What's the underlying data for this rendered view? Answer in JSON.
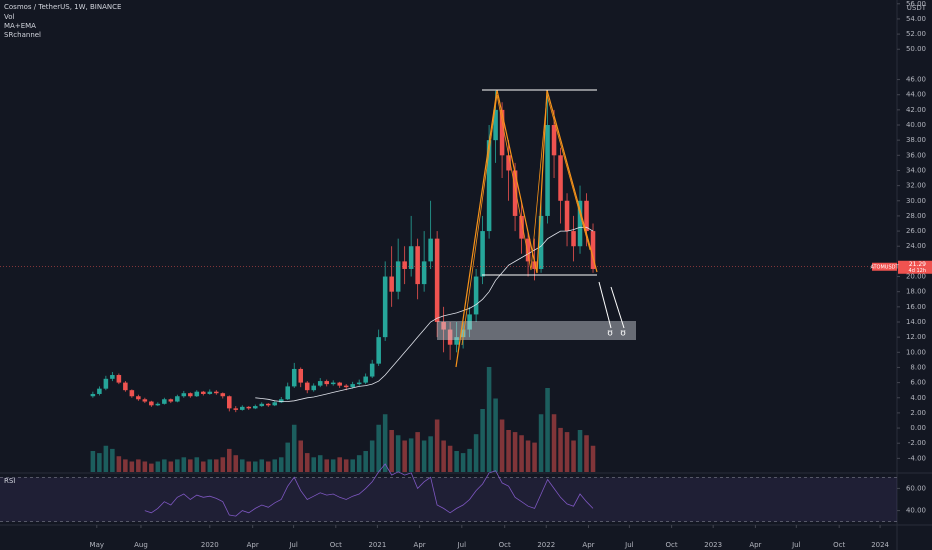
{
  "chart_data": {
    "type": "candlestick",
    "title": "Cosmos / TetherUS, 1W, BINANCE",
    "indicators": [
      "Vol",
      "MA+EMA",
      "SRchannel"
    ],
    "currency": "USDT",
    "symbol_label": "ATOMUSDT",
    "last_price": 21.29,
    "countdown": "4d 12h",
    "up_color": "#26a69a",
    "down_color": "#ef5350",
    "ma_color": "#e0e3eb",
    "grid": false,
    "xlim": [
      -14.3,
      123.8
    ],
    "ylim": [
      -5.8,
      56.5
    ],
    "yticks": [
      {
        "value": -4,
        "label": "-4.00"
      },
      {
        "value": -2,
        "label": "-2.00"
      },
      {
        "value": 0,
        "label": "0.00"
      },
      {
        "value": 2,
        "label": "2.00"
      },
      {
        "value": 4,
        "label": "4.00"
      },
      {
        "value": 6,
        "label": "6.00"
      },
      {
        "value": 8,
        "label": "8.00"
      },
      {
        "value": 10,
        "label": "10.00"
      },
      {
        "value": 12,
        "label": "12.00"
      },
      {
        "value": 14,
        "label": "14.00"
      },
      {
        "value": 16,
        "label": "16.00"
      },
      {
        "value": 18,
        "label": "18.00"
      },
      {
        "value": 20,
        "label": "20.00"
      },
      {
        "value": 24,
        "label": "24.00"
      },
      {
        "value": 26,
        "label": "26.00"
      },
      {
        "value": 28,
        "label": "28.00"
      },
      {
        "value": 30,
        "label": "30.00"
      },
      {
        "value": 32,
        "label": "32.00"
      },
      {
        "value": 34,
        "label": "34.00"
      },
      {
        "value": 36,
        "label": "36.00"
      },
      {
        "value": 38,
        "label": "38.00"
      },
      {
        "value": 40,
        "label": "40.00"
      },
      {
        "value": 42,
        "label": "42.00"
      },
      {
        "value": 44,
        "label": "44.00"
      },
      {
        "value": 46,
        "label": "46.00"
      },
      {
        "value": 50,
        "label": "50.00"
      },
      {
        "value": 52,
        "label": "52.00"
      },
      {
        "value": 54,
        "label": "54.00"
      },
      {
        "value": 56,
        "label": "56.00"
      }
    ],
    "xticks": [
      {
        "value": 0.6,
        "label": "May"
      },
      {
        "value": 7.4,
        "label": "Aug"
      },
      {
        "value": 18,
        "label": "2020"
      },
      {
        "value": 24.6,
        "label": "Apr"
      },
      {
        "value": 30.9,
        "label": "Jul"
      },
      {
        "value": 37.4,
        "label": "Oct"
      },
      {
        "value": 43.8,
        "label": "2021"
      },
      {
        "value": 50.3,
        "label": "Apr"
      },
      {
        "value": 56.8,
        "label": "Jul"
      },
      {
        "value": 63.4,
        "label": "Oct"
      },
      {
        "value": 69.8,
        "label": "2022"
      },
      {
        "value": 76.3,
        "label": "Apr"
      },
      {
        "value": 82.6,
        "label": "Jul"
      },
      {
        "value": 89.1,
        "label": "Oct"
      },
      {
        "value": 95.5,
        "label": "2023"
      },
      {
        "value": 102,
        "label": "Apr"
      },
      {
        "value": 108.3,
        "label": "Jul"
      },
      {
        "value": 114.9,
        "label": "Oct"
      },
      {
        "value": 121.2,
        "label": "2024"
      }
    ],
    "open": [
      4.2,
      4.5,
      5.2,
      6.5,
      7,
      6,
      5,
      4.2,
      3.8,
      3.5,
      3.0,
      3.2,
      3.8,
      3.5,
      4.2,
      4.6,
      4.2,
      4.8,
      4.5,
      4.8,
      4.6,
      4.2,
      2.6,
      2.4,
      2.8,
      2.6,
      2.9,
      3.2,
      3.0,
      3.4,
      3.8,
      5.5,
      7.8,
      6.0,
      5.0,
      5.6,
      6.2,
      5.8,
      6.0,
      5.6,
      5.4,
      5.8,
      6.0,
      6.8,
      8.5,
      12,
      20,
      18,
      22,
      21,
      24,
      19,
      22,
      25,
      14,
      13,
      11,
      12,
      13,
      15,
      20,
      26,
      38,
      42,
      36,
      34,
      28,
      25,
      22,
      21,
      28,
      40,
      36,
      30,
      26,
      24,
      30,
      26
    ],
    "high": [
      4.8,
      5.5,
      6.9,
      7.4,
      7.2,
      6.2,
      5.1,
      4.4,
      4.0,
      3.6,
      3.4,
      4.0,
      3.9,
      4.4,
      4.9,
      4.7,
      5.0,
      4.9,
      5.1,
      5.0,
      4.7,
      4.3,
      2.9,
      3.0,
      2.9,
      3.1,
      3.4,
      3.3,
      3.6,
      4.1,
      6.0,
      8.6,
      8.0,
      6.2,
      5.9,
      6.6,
      6.4,
      6.3,
      6.1,
      5.8,
      6.1,
      6.4,
      7.2,
      9.0,
      13,
      22,
      24,
      25,
      24,
      28,
      25,
      26,
      30,
      26,
      16,
      14,
      14,
      14,
      16,
      21,
      28,
      40,
      44.5,
      43,
      38,
      35,
      30,
      26,
      25,
      30,
      44.5,
      42,
      37,
      31,
      28,
      32,
      31,
      27
    ],
    "low": [
      4.0,
      4.3,
      5.0,
      6.2,
      5.8,
      4.8,
      4.0,
      3.6,
      3.3,
      2.8,
      2.9,
      3.1,
      3.3,
      3.4,
      4.0,
      4.0,
      4.1,
      4.3,
      4.4,
      4.4,
      3.9,
      2.2,
      2.1,
      2.3,
      2.4,
      2.5,
      2.8,
      2.8,
      2.9,
      3.3,
      3.7,
      5.3,
      5.4,
      4.6,
      4.8,
      5.4,
      5.5,
      5.6,
      5.3,
      5.0,
      5.2,
      5.6,
      5.8,
      6.6,
      8.2,
      11.5,
      16,
      17,
      19,
      20,
      17,
      18,
      21,
      12,
      10,
      9,
      10,
      10.5,
      12,
      14,
      19,
      25,
      35,
      33,
      30,
      26,
      23,
      20,
      19.5,
      20.5,
      27,
      33,
      27,
      24,
      22,
      23,
      24,
      20.5
    ],
    "close": [
      4.5,
      5.2,
      6.5,
      7,
      6,
      5,
      4.2,
      3.8,
      3.5,
      3.0,
      3.2,
      3.8,
      3.5,
      4.2,
      4.6,
      4.2,
      4.8,
      4.5,
      4.8,
      4.6,
      4.2,
      2.6,
      2.4,
      2.8,
      2.6,
      2.9,
      3.2,
      3.0,
      3.4,
      3.8,
      5.5,
      7.8,
      6.0,
      5.0,
      5.6,
      6.2,
      5.8,
      6.0,
      5.6,
      5.4,
      5.8,
      6.0,
      6.8,
      8.5,
      12,
      20,
      18,
      22,
      21,
      24,
      19,
      22,
      25,
      14,
      13,
      11,
      12,
      13,
      15,
      20,
      26,
      38,
      42,
      36,
      34,
      28,
      25,
      22,
      21,
      28,
      40,
      36,
      30,
      26,
      24,
      30,
      26,
      21
    ],
    "volume": [
      20,
      18,
      25,
      22,
      15,
      12,
      10,
      12,
      10,
      8,
      10,
      12,
      10,
      12,
      14,
      12,
      14,
      10,
      12,
      12,
      14,
      22,
      16,
      12,
      10,
      10,
      12,
      10,
      12,
      14,
      28,
      45,
      30,
      18,
      14,
      16,
      12,
      12,
      14,
      12,
      12,
      16,
      20,
      30,
      45,
      55,
      40,
      35,
      30,
      32,
      38,
      30,
      34,
      50,
      30,
      25,
      20,
      18,
      22,
      36,
      60,
      100,
      70,
      50,
      40,
      38,
      35,
      30,
      28,
      55,
      80,
      55,
      42,
      38,
      30,
      40,
      35,
      25
    ],
    "volume_lim": [
      0,
      100
    ],
    "ma": {
      "name": "MA+EMA",
      "values": [
        null,
        null,
        null,
        null,
        null,
        null,
        null,
        null,
        null,
        null,
        null,
        null,
        null,
        null,
        null,
        null,
        null,
        null,
        null,
        null,
        null,
        null,
        null,
        null,
        null,
        4,
        3.9,
        3.8,
        3.6,
        3.5,
        3.5,
        3.6,
        3.8,
        4.0,
        4.1,
        4.3,
        4.5,
        4.7,
        4.9,
        5.1,
        5.3,
        5.5,
        5.6,
        5.8,
        6.2,
        7,
        8,
        9,
        10,
        11,
        12,
        13,
        14,
        14.5,
        14.8,
        15,
        15.2,
        15.5,
        15.8,
        16.3,
        17,
        18,
        19.5,
        20.5,
        21.5,
        22,
        22.5,
        23,
        23.5,
        24,
        25,
        25.5,
        26,
        26,
        26.2,
        26.5,
        26.5,
        26
      ]
    },
    "rsi": {
      "name": "RSI",
      "color": "#7e57c2",
      "values": [
        null,
        null,
        null,
        null,
        null,
        null,
        null,
        null,
        40,
        38,
        42,
        48,
        45,
        52,
        55,
        50,
        54,
        52,
        53,
        51,
        48,
        36,
        35,
        40,
        38,
        42,
        45,
        43,
        47,
        50,
        62,
        70,
        58,
        50,
        53,
        56,
        54,
        55,
        52,
        50,
        53,
        55,
        60,
        66,
        75,
        82,
        72,
        75,
        72,
        74,
        60,
        66,
        70,
        45,
        42,
        38,
        42,
        45,
        50,
        58,
        64,
        74,
        76,
        65,
        62,
        52,
        48,
        44,
        42,
        55,
        68,
        60,
        52,
        46,
        44,
        55,
        48,
        42
      ],
      "ylim": [
        27,
        73
      ],
      "bands": [
        30,
        70
      ],
      "yticks": [
        {
          "value": 40,
          "label": "40.00"
        },
        {
          "value": 60,
          "label": "60.00"
        }
      ]
    }
  }
}
